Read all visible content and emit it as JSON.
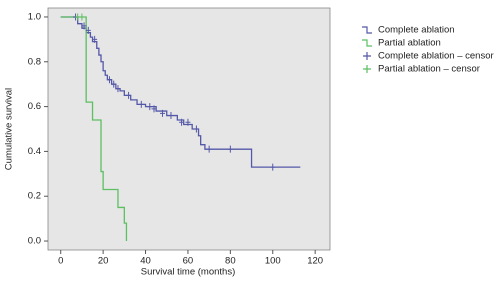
{
  "chart_data": {
    "type": "survival",
    "x_label": "Survival time (months)",
    "y_label": "Cumulative survival",
    "xlim": [
      -6,
      127
    ],
    "ylim": [
      -0.04,
      1.04
    ],
    "xticks": [
      0,
      20,
      40,
      60,
      80,
      100,
      120
    ],
    "yticks": [
      {
        "value": 0,
        "label": "0.0"
      },
      0.2,
      0.4,
      0.6,
      0.8,
      {
        "value": 1,
        "label": "1.0"
      }
    ],
    "background": "#e6e6e6",
    "series": [
      {
        "name": "Complete ablation",
        "type": "step",
        "color": "#5458a8",
        "x": [
          0,
          8,
          10,
          12,
          14,
          15,
          17,
          18,
          19,
          20,
          21,
          22,
          24,
          26,
          28,
          30,
          33,
          36,
          40,
          45,
          50,
          55,
          58,
          62,
          65,
          66,
          68,
          90,
          113
        ],
        "values": [
          1,
          0.97,
          0.95,
          0.93,
          0.91,
          0.89,
          0.86,
          0.83,
          0.8,
          0.76,
          0.74,
          0.72,
          0.7,
          0.68,
          0.67,
          0.65,
          0.63,
          0.61,
          0.6,
          0.58,
          0.56,
          0.54,
          0.52,
          0.5,
          0.47,
          0.43,
          0.41,
          0.33,
          0.33
        ]
      },
      {
        "name": "Partial ablation",
        "type": "step",
        "color": "#5cbf62",
        "x": [
          0,
          12,
          15,
          19,
          20,
          27,
          30,
          31
        ],
        "values": [
          1,
          0.62,
          0.54,
          0.31,
          0.23,
          0.15,
          0.08,
          0
        ]
      },
      {
        "name": "Complete ablation – censor",
        "type": "censor",
        "color": "#5458a8",
        "x": [
          7,
          11,
          13,
          16,
          23,
          25,
          27,
          32,
          38,
          42,
          44,
          48,
          52,
          57,
          60,
          64,
          70,
          80,
          100
        ],
        "values": [
          1,
          0.96,
          0.94,
          0.9,
          0.72,
          0.7,
          0.68,
          0.65,
          0.61,
          0.6,
          0.59,
          0.57,
          0.56,
          0.53,
          0.53,
          0.5,
          0.41,
          0.41,
          0.33
        ]
      },
      {
        "name": "Partial ablation – censor",
        "type": "censor",
        "color": "#5cbf62",
        "x": [
          8,
          10
        ],
        "values": [
          1,
          1
        ]
      }
    ]
  }
}
